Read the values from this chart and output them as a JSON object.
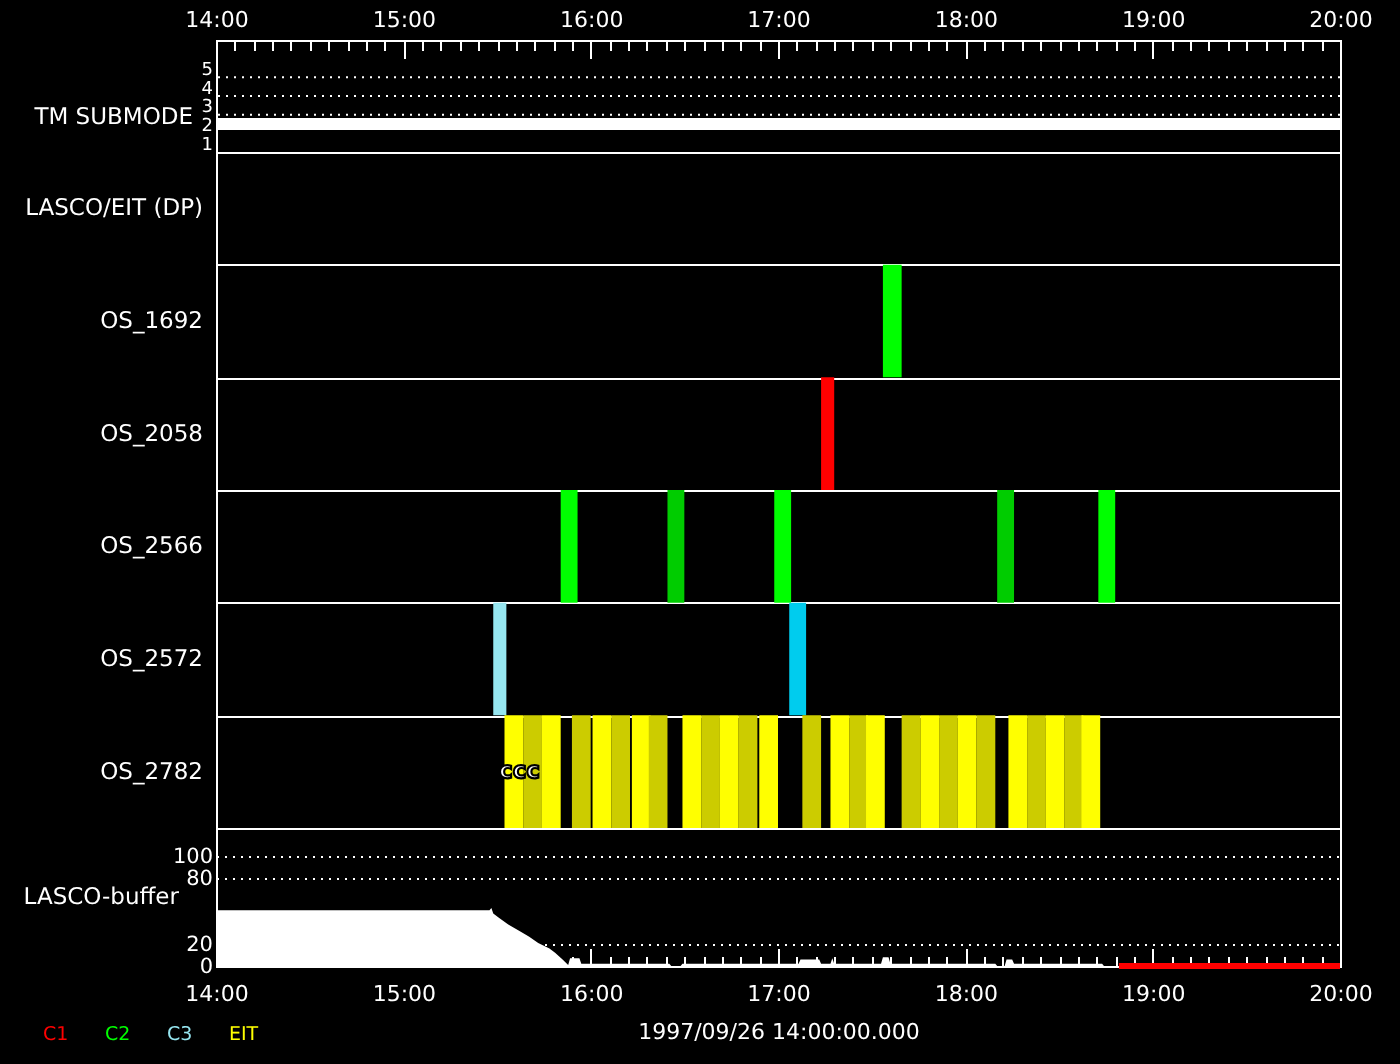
{
  "chart_data": [
    {
      "type": "line",
      "x": [
        14,
        20
      ],
      "series": [
        {
          "color": "#ffffff",
          "values": [
            2,
            2
          ]
        }
      ],
      "xlim": [
        14,
        20
      ],
      "xticks": [
        {
          "value": 14,
          "label": "14:00"
        },
        {
          "value": 14.1,
          "label": null
        },
        {
          "value": 14.2,
          "label": null
        },
        {
          "value": 14.3,
          "label": null
        },
        {
          "value": 14.4,
          "label": null
        },
        {
          "value": 14.5,
          "label": null
        },
        {
          "value": 14.6,
          "label": null
        },
        {
          "value": 14.7,
          "label": null
        },
        {
          "value": 14.8,
          "label": null
        },
        {
          "value": 14.9,
          "label": null
        },
        {
          "value": 15,
          "label": "15:00"
        },
        {
          "value": 15.1,
          "label": null
        },
        {
          "value": 15.2,
          "label": null
        },
        {
          "value": 15.3,
          "label": null
        },
        {
          "value": 15.4,
          "label": null
        },
        {
          "value": 15.5,
          "label": null
        },
        {
          "value": 15.6,
          "label": null
        },
        {
          "value": 15.7,
          "label": null
        },
        {
          "value": 15.8,
          "label": null
        },
        {
          "value": 15.9,
          "label": null
        },
        {
          "value": 16,
          "label": "16:00"
        },
        {
          "value": 16.1,
          "label": null
        },
        {
          "value": 16.2,
          "label": null
        },
        {
          "value": 16.3,
          "label": null
        },
        {
          "value": 16.4,
          "label": null
        },
        {
          "value": 16.5,
          "label": null
        },
        {
          "value": 16.6,
          "label": null
        },
        {
          "value": 16.7,
          "label": null
        },
        {
          "value": 16.8,
          "label": null
        },
        {
          "value": 16.9,
          "label": null
        },
        {
          "value": 17,
          "label": "17:00"
        },
        {
          "value": 17.1,
          "label": null
        },
        {
          "value": 17.2,
          "label": null
        },
        {
          "value": 17.3,
          "label": null
        },
        {
          "value": 17.4,
          "label": null
        },
        {
          "value": 17.5,
          "label": null
        },
        {
          "value": 17.6,
          "label": null
        },
        {
          "value": 17.7,
          "label": null
        },
        {
          "value": 17.8,
          "label": null
        },
        {
          "value": 17.9,
          "label": null
        },
        {
          "value": 18,
          "label": "18:00"
        },
        {
          "value": 18.1,
          "label": null
        },
        {
          "value": 18.2,
          "label": null
        },
        {
          "value": 18.3,
          "label": null
        },
        {
          "value": 18.4,
          "label": null
        },
        {
          "value": 18.5,
          "label": null
        },
        {
          "value": 18.6,
          "label": null
        },
        {
          "value": 18.7,
          "label": null
        },
        {
          "value": 18.8,
          "label": null
        },
        {
          "value": 18.9,
          "label": null
        },
        {
          "value": 19,
          "label": "19:00"
        },
        {
          "value": 19.1,
          "label": null
        },
        {
          "value": 19.2,
          "label": null
        },
        {
          "value": 19.3,
          "label": null
        },
        {
          "value": 19.4,
          "label": null
        },
        {
          "value": 19.5,
          "label": null
        },
        {
          "value": 19.6,
          "label": null
        },
        {
          "value": 19.7,
          "label": null
        },
        {
          "value": 19.8,
          "label": null
        },
        {
          "value": 19.9,
          "label": null
        },
        {
          "value": 20,
          "label": "20:00"
        }
      ],
      "ylabel": "TM SUBMODE",
      "ylim": [
        0.5,
        6.5
      ],
      "yticks": [
        1,
        2,
        3,
        4,
        5
      ],
      "ref_lines": [
        {
          "axis": "y",
          "value": 2.5,
          "color": "#ffffff",
          "line_style": "dotted"
        },
        {
          "axis": "y",
          "value": 3.5,
          "color": "#ffffff",
          "line_style": "dotted"
        },
        {
          "axis": "y",
          "value": 4.5,
          "color": "#ffffff",
          "line_style": "dotted"
        }
      ]
    },
    {
      "type": "bar",
      "orientation": "horizontal",
      "categories": [
        "LASCO/EIT (DP)",
        "OS_1692",
        "OS_2058",
        "OS_2566",
        "OS_2572",
        "OS_2782"
      ],
      "xlim": [
        14,
        20
      ],
      "tick_labels": "y",
      "grid": "y",
      "legend": "bottom left",
      "series": [
        {
          "name": "C1",
          "color": "#ff0000",
          "values": [
            null,
            null,
            0.07,
            null,
            null,
            null
          ],
          "base": [
            null,
            null,
            17.23,
            null,
            null,
            null
          ]
        },
        {
          "name": "C2",
          "color": "#00ff00",
          "values": [
            null,
            0.1,
            null,
            0.09,
            null,
            null
          ],
          "base": [
            null,
            17.56,
            null,
            15.84,
            null,
            null
          ]
        },
        {
          "color": "#00cc00",
          "values": [
            null,
            null,
            null,
            0.09,
            null,
            null
          ],
          "base": [
            null,
            null,
            null,
            16.41,
            null,
            null
          ]
        },
        {
          "color": "#00ff00",
          "values": [
            null,
            null,
            null,
            0.09,
            null,
            null
          ],
          "base": [
            null,
            null,
            null,
            16.98,
            null,
            null
          ]
        },
        {
          "color": "#00cc00",
          "values": [
            null,
            null,
            null,
            0.09,
            null,
            null
          ],
          "base": [
            null,
            null,
            null,
            18.17,
            null,
            null
          ]
        },
        {
          "color": "#00ff00",
          "values": [
            null,
            null,
            null,
            0.09,
            null,
            null
          ],
          "base": [
            null,
            null,
            null,
            18.71,
            null,
            null
          ]
        },
        {
          "name": "C3",
          "color": "#96e6f0",
          "values": [
            null,
            null,
            null,
            null,
            0.07,
            null
          ],
          "base": [
            null,
            null,
            null,
            null,
            15.48,
            null
          ]
        },
        {
          "color": "#00ccee",
          "values": [
            null,
            null,
            null,
            null,
            0.09,
            null
          ],
          "base": [
            null,
            null,
            null,
            null,
            17.06,
            null
          ]
        },
        {
          "name": "EIT",
          "color": "#ffff00",
          "values": [
            null,
            null,
            null,
            null,
            null,
            0.1
          ],
          "base": [
            null,
            null,
            null,
            null,
            null,
            15.54
          ]
        },
        {
          "color": "#cccc00",
          "values": [
            null,
            null,
            null,
            null,
            null,
            0.1
          ],
          "base": [
            null,
            null,
            null,
            null,
            null,
            15.64
          ]
        },
        {
          "color": "#ffff00",
          "values": [
            null,
            null,
            null,
            null,
            null,
            0.1
          ],
          "base": [
            null,
            null,
            null,
            null,
            null,
            15.74
          ]
        },
        {
          "color": "#cccc00",
          "values": [
            null,
            null,
            null,
            null,
            null,
            0.1
          ],
          "base": [
            null,
            null,
            null,
            null,
            null,
            15.9
          ]
        },
        {
          "color": "#ffff00",
          "values": [
            null,
            null,
            null,
            null,
            null,
            0.1
          ],
          "base": [
            null,
            null,
            null,
            null,
            null,
            16.01
          ]
        },
        {
          "color": "#cccc00",
          "values": [
            null,
            null,
            null,
            null,
            null,
            0.1
          ],
          "base": [
            null,
            null,
            null,
            null,
            null,
            16.11
          ]
        },
        {
          "color": "#ffff00",
          "values": [
            null,
            null,
            null,
            null,
            null,
            0.1
          ],
          "base": [
            null,
            null,
            null,
            null,
            null,
            16.22
          ]
        },
        {
          "color": "#cccc00",
          "values": [
            null,
            null,
            null,
            null,
            null,
            0.1
          ],
          "base": [
            null,
            null,
            null,
            null,
            null,
            16.31
          ]
        },
        {
          "color": "#ffff00",
          "values": [
            null,
            null,
            null,
            null,
            null,
            0.1
          ],
          "base": [
            null,
            null,
            null,
            null,
            null,
            16.49
          ]
        },
        {
          "color": "#cccc00",
          "values": [
            null,
            null,
            null,
            null,
            null,
            0.1
          ],
          "base": [
            null,
            null,
            null,
            null,
            null,
            16.59
          ]
        },
        {
          "color": "#ffff00",
          "values": [
            null,
            null,
            null,
            null,
            null,
            0.1
          ],
          "base": [
            null,
            null,
            null,
            null,
            null,
            16.69
          ]
        },
        {
          "color": "#cccc00",
          "values": [
            null,
            null,
            null,
            null,
            null,
            0.1
          ],
          "base": [
            null,
            null,
            null,
            null,
            null,
            16.79
          ]
        },
        {
          "color": "#ffff00",
          "values": [
            null,
            null,
            null,
            null,
            null,
            0.1
          ],
          "base": [
            null,
            null,
            null,
            null,
            null,
            16.9
          ]
        },
        {
          "color": "#cccc00",
          "values": [
            null,
            null,
            null,
            null,
            null,
            0.1
          ],
          "base": [
            null,
            null,
            null,
            null,
            null,
            17.13
          ]
        },
        {
          "color": "#ffff00",
          "values": [
            null,
            null,
            null,
            null,
            null,
            0.1
          ],
          "base": [
            null,
            null,
            null,
            null,
            null,
            17.28
          ]
        },
        {
          "color": "#cccc00",
          "values": [
            null,
            null,
            null,
            null,
            null,
            0.1
          ],
          "base": [
            null,
            null,
            null,
            null,
            null,
            17.38
          ]
        },
        {
          "color": "#ffff00",
          "values": [
            null,
            null,
            null,
            null,
            null,
            0.1
          ],
          "base": [
            null,
            null,
            null,
            null,
            null,
            17.47
          ]
        },
        {
          "color": "#cccc00",
          "values": [
            null,
            null,
            null,
            null,
            null,
            0.1
          ],
          "base": [
            null,
            null,
            null,
            null,
            null,
            17.66
          ]
        },
        {
          "color": "#ffff00",
          "values": [
            null,
            null,
            null,
            null,
            null,
            0.1
          ],
          "base": [
            null,
            null,
            null,
            null,
            null,
            17.76
          ]
        },
        {
          "color": "#cccc00",
          "values": [
            null,
            null,
            null,
            null,
            null,
            0.1
          ],
          "base": [
            null,
            null,
            null,
            null,
            null,
            17.86
          ]
        },
        {
          "color": "#ffff00",
          "values": [
            null,
            null,
            null,
            null,
            null,
            0.1
          ],
          "base": [
            null,
            null,
            null,
            null,
            null,
            17.96
          ]
        },
        {
          "color": "#cccc00",
          "values": [
            null,
            null,
            null,
            null,
            null,
            0.1
          ],
          "base": [
            null,
            null,
            null,
            null,
            null,
            18.06
          ]
        },
        {
          "color": "#ffff00",
          "values": [
            null,
            null,
            null,
            null,
            null,
            0.1
          ],
          "base": [
            null,
            null,
            null,
            null,
            null,
            18.23
          ]
        },
        {
          "color": "#cccc00",
          "values": [
            null,
            null,
            null,
            null,
            null,
            0.1
          ],
          "base": [
            null,
            null,
            null,
            null,
            null,
            18.33
          ]
        },
        {
          "color": "#ffff00",
          "values": [
            null,
            null,
            null,
            null,
            null,
            0.1
          ],
          "base": [
            null,
            null,
            null,
            null,
            null,
            18.43
          ]
        },
        {
          "color": "#cccc00",
          "values": [
            null,
            null,
            null,
            null,
            null,
            0.1
          ],
          "base": [
            null,
            null,
            null,
            null,
            null,
            18.53
          ]
        },
        {
          "color": "#ffff00",
          "values": [
            null,
            null,
            null,
            null,
            null,
            0.1
          ],
          "base": [
            null,
            null,
            null,
            null,
            null,
            18.62
          ]
        }
      ],
      "annotations": [
        {
          "text": "ccc",
          "x": 15.62,
          "y": "OS_2782"
        }
      ]
    },
    {
      "type": "area",
      "x": [
        14,
        15.46,
        15.47,
        15.48,
        15.51,
        15.56,
        15.62,
        15.67,
        15.72,
        15.78,
        15.81,
        15.85,
        15.88,
        15.89,
        15.94,
        15.95,
        16.42,
        16.43,
        16.48,
        16.49,
        17.11,
        17.12,
        17.22,
        17.23,
        17.28,
        17.29,
        17.3,
        17.55,
        17.56,
        17.59,
        17.6,
        18.16,
        18.17,
        18.21,
        18.22,
        18.25,
        18.26,
        18.73,
        18.74
      ],
      "series": [
        {
          "color": "#ffffff",
          "values": [
            51,
            51,
            53,
            48,
            44,
            38,
            32,
            27,
            21,
            16,
            12,
            6,
            1,
            7,
            7,
            2,
            2,
            0,
            0,
            2,
            2,
            6,
            6,
            2,
            2,
            7,
            2,
            2,
            8,
            8,
            2,
            2,
            0,
            0,
            6,
            6,
            2,
            2,
            0
          ]
        },
        {
          "type": "line",
          "color": "#ff0000",
          "x": [
            18.82,
            20
          ],
          "values": [
            0,
            0
          ]
        }
      ],
      "xlim": [
        14,
        20
      ],
      "xticks": [
        {
          "value": 14,
          "label": "14:00"
        },
        {
          "value": 14.1,
          "label": null
        },
        {
          "value": 14.2,
          "label": null
        },
        {
          "value": 14.3,
          "label": null
        },
        {
          "value": 14.4,
          "label": null
        },
        {
          "value": 14.5,
          "label": null
        },
        {
          "value": 14.6,
          "label": null
        },
        {
          "value": 14.7,
          "label": null
        },
        {
          "value": 14.8,
          "label": null
        },
        {
          "value": 14.9,
          "label": null
        },
        {
          "value": 15,
          "label": "15:00"
        },
        {
          "value": 15.1,
          "label": null
        },
        {
          "value": 15.2,
          "label": null
        },
        {
          "value": 15.3,
          "label": null
        },
        {
          "value": 15.4,
          "label": null
        },
        {
          "value": 15.5,
          "label": null
        },
        {
          "value": 15.6,
          "label": null
        },
        {
          "value": 15.7,
          "label": null
        },
        {
          "value": 15.8,
          "label": null
        },
        {
          "value": 15.9,
          "label": null
        },
        {
          "value": 16,
          "label": "16:00"
        },
        {
          "value": 16.1,
          "label": null
        },
        {
          "value": 16.2,
          "label": null
        },
        {
          "value": 16.3,
          "label": null
        },
        {
          "value": 16.4,
          "label": null
        },
        {
          "value": 16.5,
          "label": null
        },
        {
          "value": 16.6,
          "label": null
        },
        {
          "value": 16.7,
          "label": null
        },
        {
          "value": 16.8,
          "label": null
        },
        {
          "value": 16.9,
          "label": null
        },
        {
          "value": 17,
          "label": "17:00"
        },
        {
          "value": 17.1,
          "label": null
        },
        {
          "value": 17.2,
          "label": null
        },
        {
          "value": 17.3,
          "label": null
        },
        {
          "value": 17.4,
          "label": null
        },
        {
          "value": 17.5,
          "label": null
        },
        {
          "value": 17.6,
          "label": null
        },
        {
          "value": 17.7,
          "label": null
        },
        {
          "value": 17.8,
          "label": null
        },
        {
          "value": 17.9,
          "label": null
        },
        {
          "value": 18,
          "label": "18:00"
        },
        {
          "value": 18.1,
          "label": null
        },
        {
          "value": 18.2,
          "label": null
        },
        {
          "value": 18.3,
          "label": null
        },
        {
          "value": 18.4,
          "label": null
        },
        {
          "value": 18.5,
          "label": null
        },
        {
          "value": 18.6,
          "label": null
        },
        {
          "value": 18.7,
          "label": null
        },
        {
          "value": 18.8,
          "label": null
        },
        {
          "value": 18.9,
          "label": null
        },
        {
          "value": 19,
          "label": "19:00"
        },
        {
          "value": 19.1,
          "label": null
        },
        {
          "value": 19.2,
          "label": null
        },
        {
          "value": 19.3,
          "label": null
        },
        {
          "value": 19.4,
          "label": null
        },
        {
          "value": 19.5,
          "label": null
        },
        {
          "value": 19.6,
          "label": null
        },
        {
          "value": 19.7,
          "label": null
        },
        {
          "value": 19.8,
          "label": null
        },
        {
          "value": 19.9,
          "label": null
        },
        {
          "value": 20,
          "label": "20:00"
        }
      ],
      "xlabel": "1997/09/26 14:00:00.000",
      "ylabel": "LASCO-buffer",
      "ylim": [
        0,
        126
      ],
      "yticks": [
        0,
        20,
        80,
        100
      ],
      "grid": "y"
    }
  ]
}
